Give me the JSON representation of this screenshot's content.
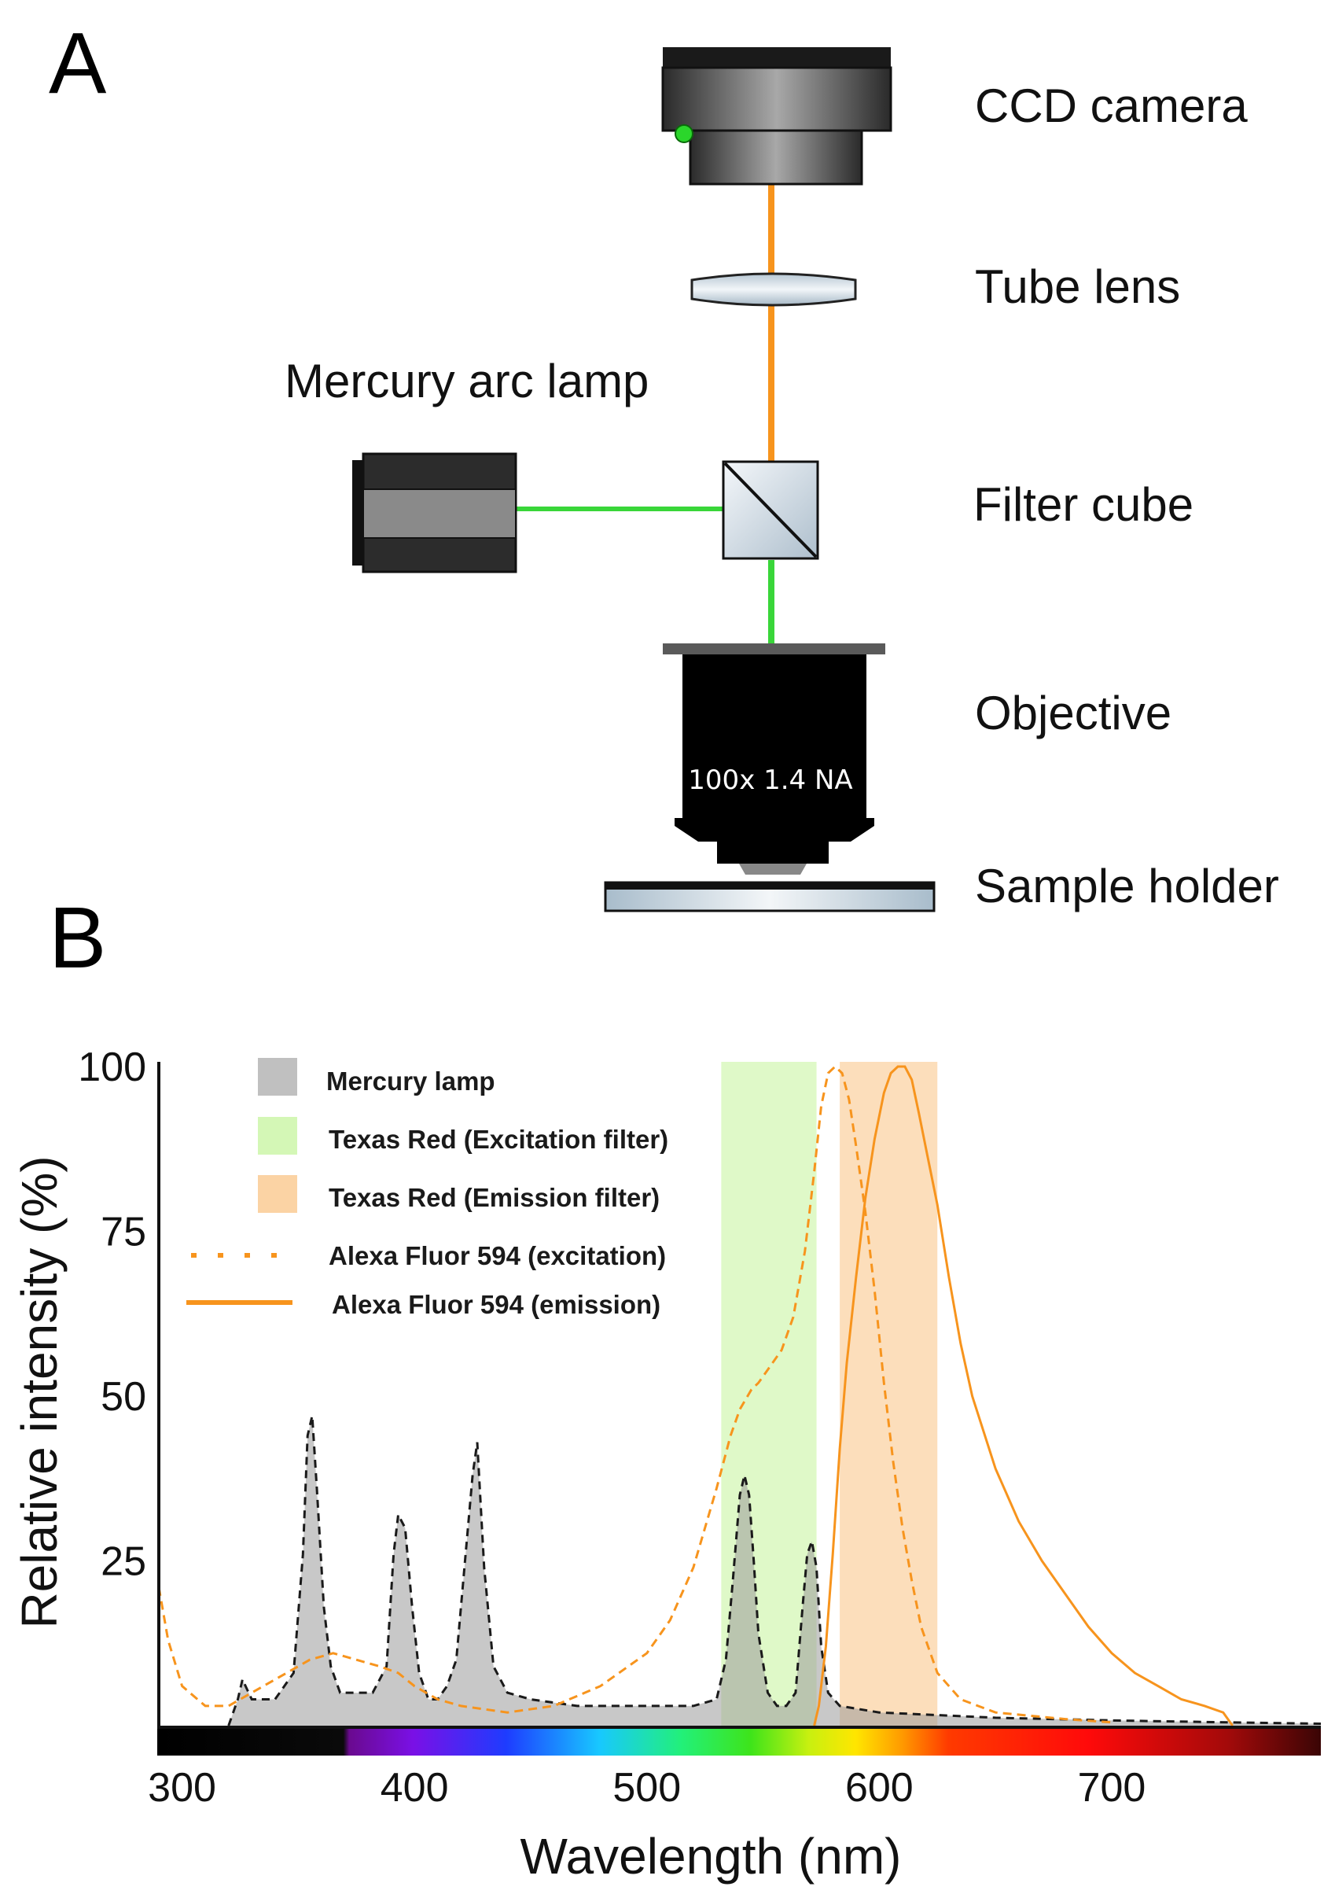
{
  "panel_a": {
    "letter": "A",
    "labels": {
      "camera": "CCD camera",
      "tube_lens": "Tube lens",
      "lamp": "Mercury arc lamp",
      "filter_cube": "Filter cube",
      "objective": "Objective",
      "sample_holder": "Sample holder"
    },
    "objective_text": "100x 1.4 NA",
    "colors": {
      "emission_beam": "#f7941d",
      "excitation_beam": "#39d639"
    }
  },
  "panel_b": {
    "letter": "B"
  },
  "chart_data": {
    "type": "area",
    "xlabel": "Wavelength (nm)",
    "ylabel": "Relative intensity (%)",
    "xlim": [
      290,
      790
    ],
    "ylim": [
      0,
      100
    ],
    "xticks": [
      300,
      400,
      500,
      600,
      700
    ],
    "yticks": [
      25,
      50,
      75,
      100
    ],
    "grid": false,
    "legend_position": "top-left",
    "legend": [
      {
        "label": "Mercury lamp",
        "style": "gray-swatch",
        "color": "#c0c0c0"
      },
      {
        "label": "Texas Red (Excitation filter)",
        "style": "green-swatch",
        "color": "#d4f7b6"
      },
      {
        "label": "Texas Red (Emission filter)",
        "style": "orange-swatch",
        "color": "#fbd3a4"
      },
      {
        "label": "Alexa Fluor 594 (excitation)",
        "style": "dotted-line",
        "color": "#f7941d"
      },
      {
        "label": "Alexa Fluor 594 (emission)",
        "style": "solid-line",
        "color": "#f7941d"
      }
    ],
    "bands": [
      {
        "name": "Texas Red (Excitation filter)",
        "x_start": 532,
        "x_end": 573,
        "color": "#d4f7b6"
      },
      {
        "name": "Texas Red (Emission filter)",
        "x_start": 583,
        "x_end": 625,
        "color": "#fbd3a4"
      }
    ],
    "series": [
      {
        "name": "Mercury lamp",
        "style": "filled-dashed",
        "x": [
          320,
          324,
          326,
          330,
          340,
          348,
          352,
          354,
          356,
          358,
          361,
          364,
          368,
          374,
          382,
          388,
          391,
          393,
          396,
          399,
          402,
          406,
          410,
          414,
          418,
          422,
          425,
          427,
          430,
          434,
          440,
          450,
          470,
          500,
          520,
          530,
          534,
          537,
          540,
          542,
          544,
          546,
          548,
          552,
          556,
          560,
          564,
          567,
          569,
          571,
          573,
          575,
          578,
          583,
          600,
          650,
          700,
          750,
          790
        ],
        "y": [
          0,
          4,
          7,
          4,
          4,
          8,
          26,
          44,
          47,
          36,
          18,
          9,
          5,
          5,
          5,
          9,
          26,
          32,
          30,
          18,
          8,
          4,
          4,
          6,
          10,
          26,
          38,
          43,
          24,
          9,
          5,
          4,
          3,
          3,
          3,
          4,
          10,
          22,
          35,
          38,
          35,
          25,
          14,
          5,
          3,
          3,
          5,
          18,
          26,
          28,
          24,
          12,
          5,
          3,
          2,
          1.2,
          0.8,
          0.5,
          0.3
        ]
      },
      {
        "name": "Alexa Fluor 594 (excitation)",
        "style": "dashed-line",
        "x": [
          290,
          294,
          300,
          310,
          320,
          330,
          340,
          355,
          365,
          375,
          385,
          393,
          400,
          410,
          420,
          440,
          460,
          480,
          500,
          510,
          520,
          530,
          536,
          540,
          545,
          548,
          552,
          558,
          563,
          568,
          572,
          575,
          578,
          581,
          584,
          587,
          590,
          594,
          598,
          602,
          606,
          610,
          614,
          618,
          625,
          635,
          650,
          680,
          700
        ],
        "y": [
          21,
          13,
          6,
          3,
          3,
          5,
          7,
          10,
          11,
          10,
          9,
          8,
          6,
          4,
          3,
          2,
          3,
          6,
          11,
          16,
          24,
          36,
          44,
          48,
          51,
          52,
          54,
          57,
          62,
          72,
          84,
          94,
          99,
          100,
          99,
          95,
          88,
          78,
          66,
          52,
          40,
          30,
          22,
          15,
          8,
          4,
          2,
          1,
          0.5
        ]
      },
      {
        "name": "Alexa Fluor 594 (emission)",
        "style": "solid-line",
        "x": [
          572,
          574,
          577,
          580,
          583,
          586,
          590,
          594,
          598,
          602,
          605,
          608,
          611,
          614,
          617,
          621,
          625,
          630,
          635,
          640,
          650,
          660,
          670,
          680,
          690,
          700,
          710,
          720,
          730,
          740,
          748,
          752
        ],
        "y": [
          0,
          3,
          12,
          26,
          42,
          55,
          68,
          80,
          89,
          96,
          99,
          100,
          100,
          98,
          93,
          86,
          79,
          68,
          58,
          50,
          39,
          31,
          25,
          20,
          15,
          11,
          8,
          6,
          4,
          3,
          2,
          0
        ]
      }
    ]
  }
}
